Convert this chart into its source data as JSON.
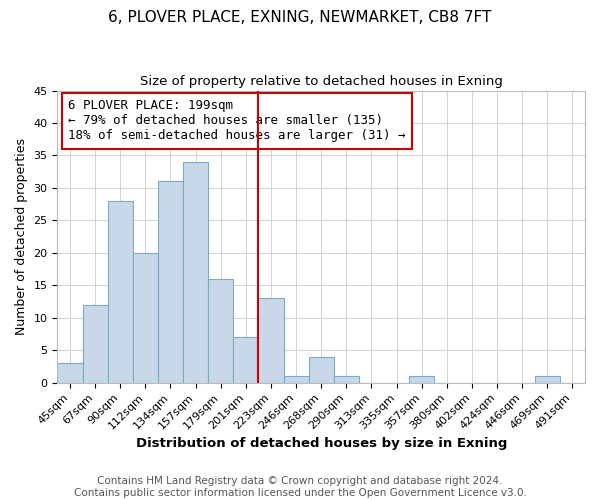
{
  "title": "6, PLOVER PLACE, EXNING, NEWMARKET, CB8 7FT",
  "subtitle": "Size of property relative to detached houses in Exning",
  "xlabel": "Distribution of detached houses by size in Exning",
  "ylabel": "Number of detached properties",
  "bin_labels": [
    "45sqm",
    "67sqm",
    "90sqm",
    "112sqm",
    "134sqm",
    "157sqm",
    "179sqm",
    "201sqm",
    "223sqm",
    "246sqm",
    "268sqm",
    "290sqm",
    "313sqm",
    "335sqm",
    "357sqm",
    "380sqm",
    "402sqm",
    "424sqm",
    "446sqm",
    "469sqm",
    "491sqm"
  ],
  "bar_values": [
    3,
    12,
    28,
    20,
    31,
    34,
    16,
    7,
    13,
    1,
    4,
    1,
    0,
    0,
    1,
    0,
    0,
    0,
    0,
    1,
    0
  ],
  "bar_color": "#c8d8e8",
  "bar_edge_color": "#7aaac8",
  "vline_x_index": 7,
  "vline_color": "#cc0000",
  "annotation_line1": "6 PLOVER PLACE: 199sqm",
  "annotation_line2": "← 79% of detached houses are smaller (135)",
  "annotation_line3": "18% of semi-detached houses are larger (31) →",
  "annotation_box_color": "#ffffff",
  "annotation_box_edge": "#cc0000",
  "ylim": [
    0,
    45
  ],
  "yticks": [
    0,
    5,
    10,
    15,
    20,
    25,
    30,
    35,
    40,
    45
  ],
  "footer": "Contains HM Land Registry data © Crown copyright and database right 2024.\nContains public sector information licensed under the Open Government Licence v3.0.",
  "title_fontsize": 11,
  "subtitle_fontsize": 9.5,
  "xlabel_fontsize": 9.5,
  "ylabel_fontsize": 9,
  "tick_fontsize": 8,
  "annotation_fontsize": 9,
  "footer_fontsize": 7.5,
  "bg_color": "#ffffff",
  "grid_color": "#cccccc"
}
